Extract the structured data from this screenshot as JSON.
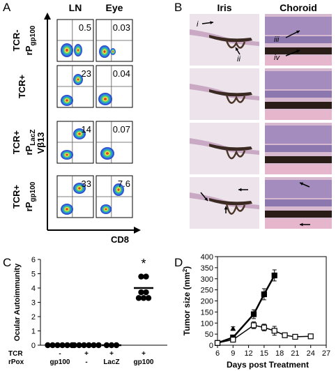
{
  "panel_labels": [
    "A",
    "B",
    "C",
    "D"
  ],
  "panel_a": {
    "columns": [
      "LN",
      "Eye"
    ],
    "rows": [
      {
        "line1": "TCR-",
        "line2": "rP",
        "sub": "gp100",
        "values": [
          0.5,
          0.03
        ]
      },
      {
        "line1": "TCR+",
        "values": [
          23,
          0.04
        ]
      },
      {
        "line1": "TCR+",
        "line2": "rP",
        "sub": "LacZ",
        "values": [
          14,
          0.07
        ]
      },
      {
        "line1": "TCR+",
        "line2": "rP",
        "sub": "gp100",
        "values": [
          33,
          7.6
        ]
      }
    ],
    "y_label": "Vβ13",
    "x_label": "CD8"
  },
  "panel_b": {
    "columns": [
      "Iris",
      "Choroid"
    ],
    "annotations": [
      "i",
      "ii",
      "iii",
      "iv"
    ]
  },
  "chart_data": [
    {
      "type": "dot",
      "y_label": "Ocular Autoimmunity",
      "ylim": [
        0,
        6
      ],
      "yticks": [
        0,
        1,
        2,
        3,
        4,
        5,
        6
      ],
      "row_labels": [
        "TCR",
        "rPox"
      ],
      "category_rows": [
        [
          "-",
          "+",
          "+",
          "+"
        ],
        [
          "gp100",
          "-",
          "LacZ",
          "gp100"
        ]
      ],
      "groups": [
        {
          "values": [
            0,
            0,
            0,
            0,
            0,
            0
          ],
          "mean": 0
        },
        {
          "values": [
            0,
            0,
            0,
            0,
            0,
            0
          ],
          "mean": 0
        },
        {
          "values": [
            0,
            0,
            0
          ],
          "mean": 0
        },
        {
          "values": [
            4.8,
            4.8,
            3.7,
            3.7,
            3.3,
            3.3,
            3.3
          ],
          "mean": 4
        }
      ],
      "color": "#000000",
      "annotation": "*"
    },
    {
      "type": "line",
      "x_label": "Days post Treatment",
      "y_label": "Tumor size (mm",
      "y_label_sup": "2",
      "y_label_close": ")",
      "xlim": [
        6,
        27
      ],
      "xticks": [
        6,
        9,
        12,
        15,
        18,
        21,
        24,
        27
      ],
      "ylim": [
        0,
        400
      ],
      "yticks": [
        0,
        50,
        100,
        150,
        200,
        250,
        300,
        350,
        400
      ],
      "series": [
        {
          "marker": "filled-square",
          "color": "#000000",
          "x": [
            6,
            9,
            13,
            15,
            17
          ],
          "values": [
            10,
            35,
            140,
            230,
            315
          ],
          "errors": [
            5,
            10,
            20,
            25,
            25
          ]
        },
        {
          "marker": "open-square",
          "color": "#000000",
          "x": [
            6,
            9,
            13,
            15,
            17,
            19,
            21,
            24
          ],
          "values": [
            10,
            25,
            90,
            80,
            65,
            45,
            38,
            40
          ],
          "errors": [
            5,
            8,
            15,
            15,
            20,
            10,
            10,
            10
          ]
        },
        {
          "marker": "triangle",
          "color": "#000000",
          "x": [
            9
          ],
          "values": [
            75
          ],
          "errors": [
            8
          ]
        }
      ]
    }
  ]
}
